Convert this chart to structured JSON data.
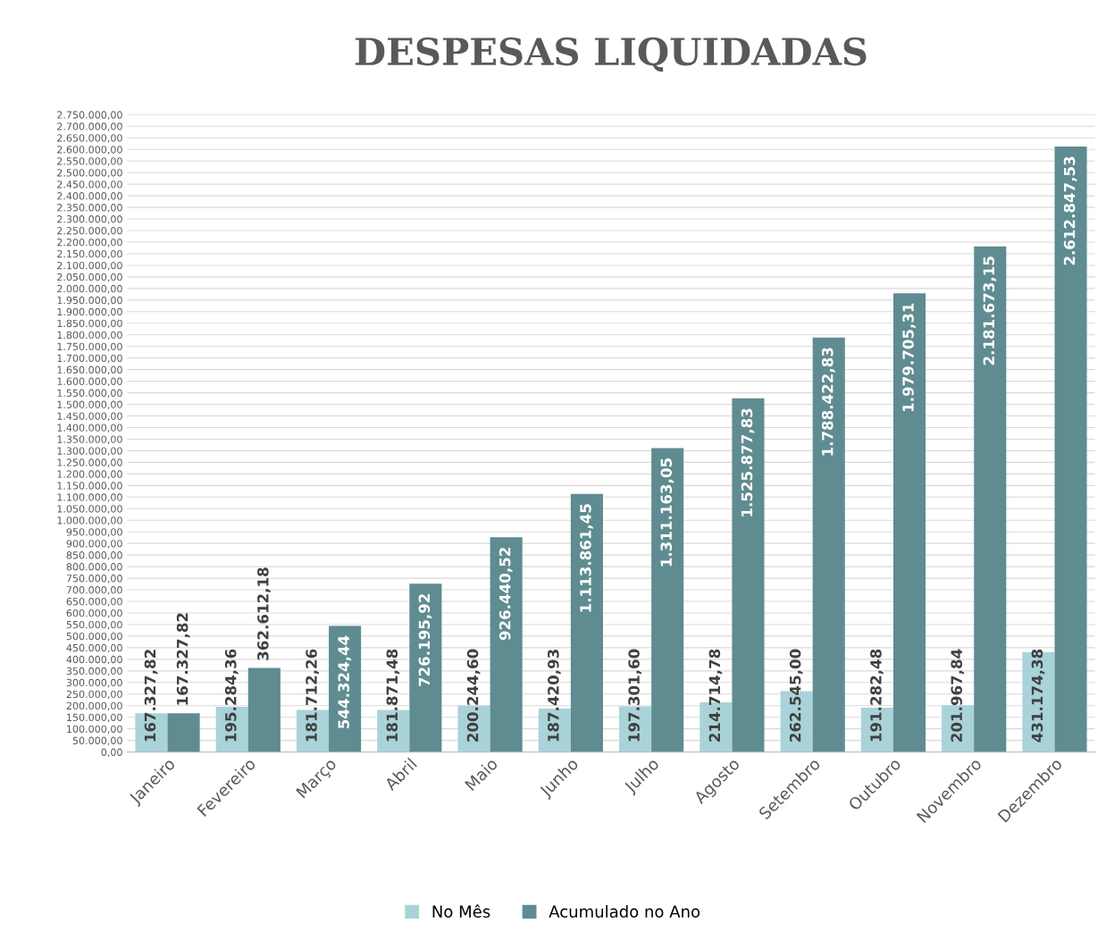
{
  "chart_data": {
    "type": "bar",
    "title": "DESPESAS LIQUIDADAS",
    "categories": [
      "Janeiro",
      "Fevereiro",
      "Março",
      "Abril",
      "Maio",
      "Junho",
      "Julho",
      "Agosto",
      "Setembro",
      "Outubro",
      "Novembro",
      "Dezembro"
    ],
    "series": [
      {
        "name": "No Mês",
        "color": "#a9d3d9",
        "values": [
          167327.82,
          195284.36,
          181712.26,
          181871.48,
          200244.6,
          187420.93,
          197301.6,
          214714.78,
          262545.0,
          191282.48,
          201967.84,
          431174.38
        ],
        "value_labels": [
          "167.327,82",
          "195.284,36",
          "181.712,26",
          "181.871,48",
          "200.244,60",
          "187.420,93",
          "197.301,60",
          "214.714,78",
          "262.545,00",
          "191.282,48",
          "201.967,84",
          "431.174,38"
        ]
      },
      {
        "name": "Acumulado no Ano",
        "color": "#5f8c91",
        "values": [
          167327.82,
          362612.18,
          544324.44,
          726195.92,
          926440.52,
          1113861.45,
          1311163.05,
          1525877.83,
          1788422.83,
          1979705.31,
          2181673.15,
          2612847.53
        ],
        "value_labels": [
          "167.327,82",
          "362.612,18",
          "544.324,44",
          "726.195,92",
          "926.440,52",
          "1.113.861,45",
          "1.311.163,05",
          "1.525.877,83",
          "1.788.422,83",
          "1.979.705,31",
          "2.181.673,15",
          "2.612.847,53"
        ]
      }
    ],
    "ylim": [
      0,
      2750000
    ],
    "yticks": [
      {
        "value": 0,
        "label": "0,00"
      },
      {
        "value": 50000,
        "label": "50.000,00"
      },
      {
        "value": 100000,
        "label": "100.000,00"
      },
      {
        "value": 150000,
        "label": "150.000,00"
      },
      {
        "value": 200000,
        "label": "200.000,00"
      },
      {
        "value": 250000,
        "label": "250.000,00"
      },
      {
        "value": 300000,
        "label": "300.000,00"
      },
      {
        "value": 350000,
        "label": "350.000,00"
      },
      {
        "value": 400000,
        "label": "400.000,00"
      },
      {
        "value": 450000,
        "label": "450.000,00"
      },
      {
        "value": 500000,
        "label": "500.000,00"
      },
      {
        "value": 550000,
        "label": "550.000,00"
      },
      {
        "value": 600000,
        "label": "600.000,00"
      },
      {
        "value": 650000,
        "label": "650.000,00"
      },
      {
        "value": 700000,
        "label": "700.000,00"
      },
      {
        "value": 750000,
        "label": "750.000,00"
      },
      {
        "value": 800000,
        "label": "800.000,00"
      },
      {
        "value": 850000,
        "label": "850.000,00"
      },
      {
        "value": 900000,
        "label": "900.000,00"
      },
      {
        "value": 950000,
        "label": "950.000,00"
      },
      {
        "value": 1000000,
        "label": "1.000.000,00"
      },
      {
        "value": 1050000,
        "label": "1.050.000,00"
      },
      {
        "value": 1100000,
        "label": "1.100.000,00"
      },
      {
        "value": 1150000,
        "label": "1.150.000,00"
      },
      {
        "value": 1200000,
        "label": "1.200.000,00"
      },
      {
        "value": 1250000,
        "label": "1.250.000,00"
      },
      {
        "value": 1300000,
        "label": "1.300.000,00"
      },
      {
        "value": 1350000,
        "label": "1.350.000,00"
      },
      {
        "value": 1400000,
        "label": "1.400.000,00"
      },
      {
        "value": 1450000,
        "label": "1.450.000,00"
      },
      {
        "value": 1500000,
        "label": "1.500.000,00"
      },
      {
        "value": 1550000,
        "label": "1.550.000,00"
      },
      {
        "value": 1600000,
        "label": "1.600.000,00"
      },
      {
        "value": 1650000,
        "label": "1.650.000,00"
      },
      {
        "value": 1700000,
        "label": "1.700.000,00"
      },
      {
        "value": 1750000,
        "label": "1.750.000,00"
      },
      {
        "value": 1800000,
        "label": "1.800.000,00"
      },
      {
        "value": 1850000,
        "label": "1.850.000,00"
      },
      {
        "value": 1900000,
        "label": "1.900.000,00"
      },
      {
        "value": 1950000,
        "label": "1.950.000,00"
      },
      {
        "value": 2000000,
        "label": "2.000.000,00"
      },
      {
        "value": 2050000,
        "label": "2.050.000,00"
      },
      {
        "value": 2100000,
        "label": "2.100.000,00"
      },
      {
        "value": 2150000,
        "label": "2.150.000,00"
      },
      {
        "value": 2200000,
        "label": "2.200.000,00"
      },
      {
        "value": 2250000,
        "label": "2.250.000,00"
      },
      {
        "value": 2300000,
        "label": "2.300.000,00"
      },
      {
        "value": 2350000,
        "label": "2.350.000,00"
      },
      {
        "value": 2400000,
        "label": "2.400.000,00"
      },
      {
        "value": 2450000,
        "label": "2.450.000,00"
      },
      {
        "value": 2500000,
        "label": "2.500.000,00"
      },
      {
        "value": 2550000,
        "label": "2.550.000,00"
      },
      {
        "value": 2600000,
        "label": "2.600.000,00"
      },
      {
        "value": 2650000,
        "label": "2.650.000,00"
      },
      {
        "value": 2700000,
        "label": "2.700.000,00"
      },
      {
        "value": 2750000,
        "label": "2.750.000,00"
      }
    ],
    "grid": "y",
    "legend": "bottom"
  }
}
